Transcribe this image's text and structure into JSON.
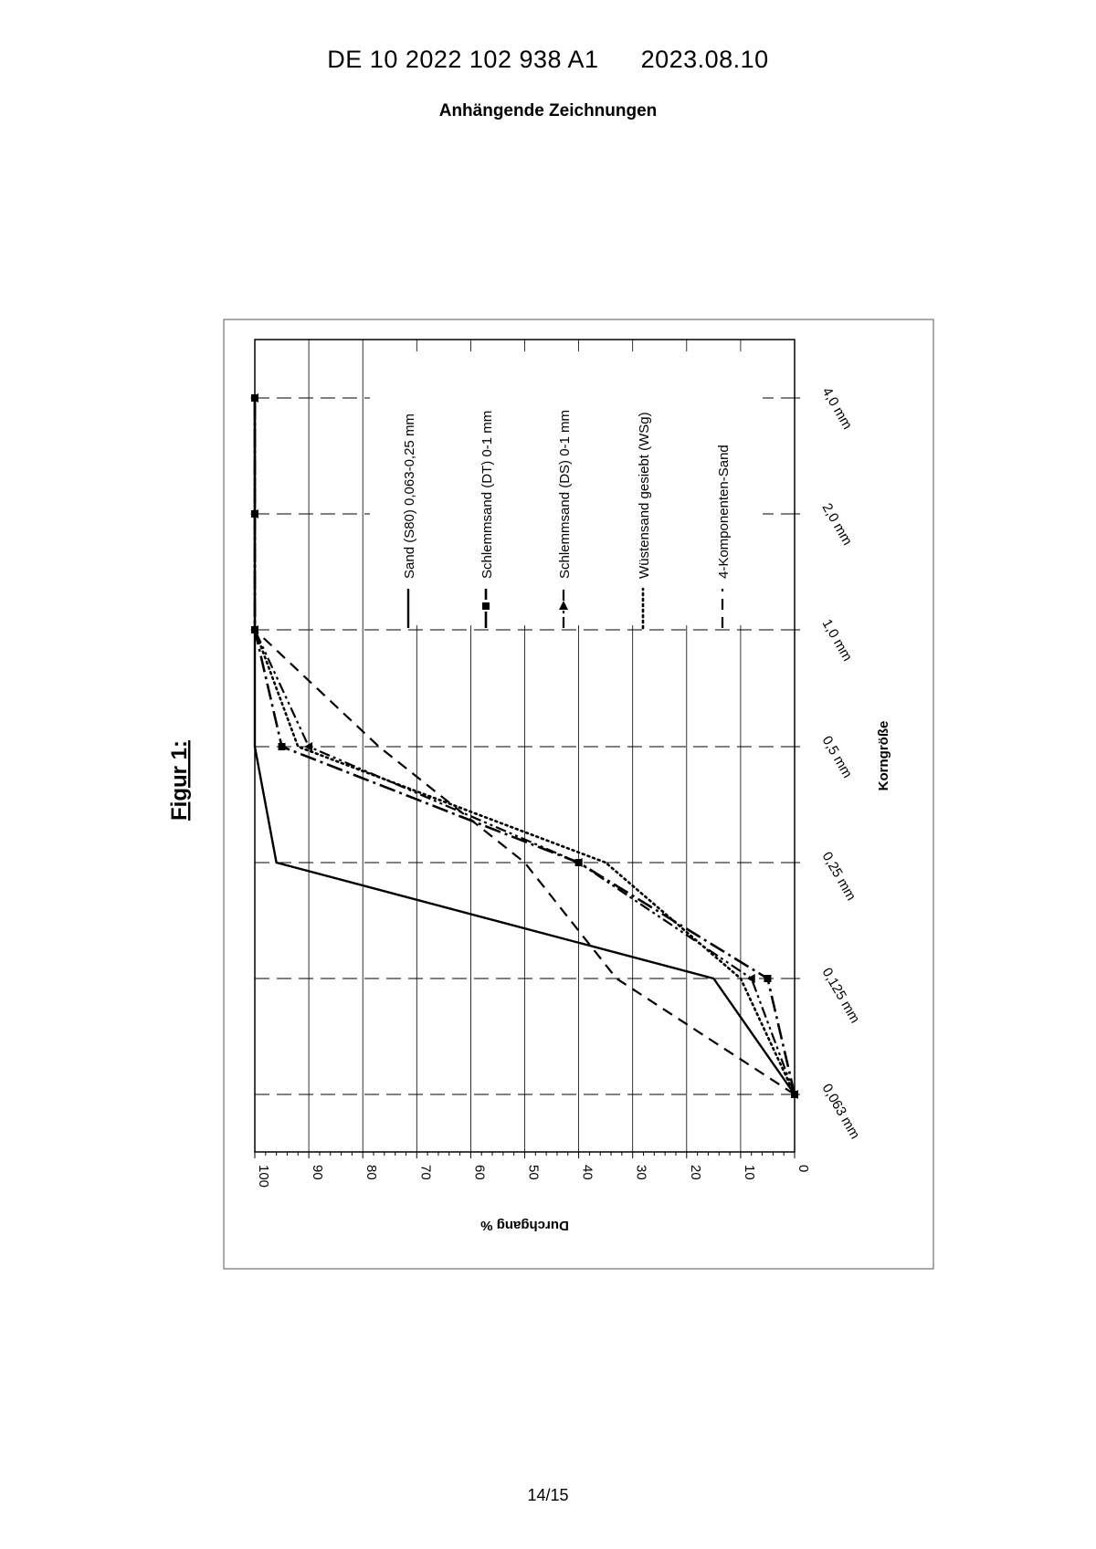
{
  "document": {
    "pub_number": "DE 10 2022 102 938 A1",
    "pub_date": "2023.08.10",
    "section_title": "Anhängende Zeichnungen",
    "figure_label": "Figur 1:",
    "page_number": "14/15"
  },
  "chart_data": {
    "type": "line",
    "orientation": "rotated 90° clockwise",
    "xlabel": "Korngröße",
    "ylabel": "Durchgang %",
    "categories": [
      "0,063 mm",
      "0,125 mm",
      "0,25 mm",
      "0,5 mm",
      "1,0 mm",
      "2,0 mm",
      "4,0 mm"
    ],
    "ylim": [
      0,
      100
    ],
    "yticks": [
      "0",
      "10",
      "20",
      "30",
      "40",
      "50",
      "60",
      "70",
      "80",
      "90",
      "100"
    ],
    "grid": true,
    "legend_position": "inside plot, upper area",
    "series": [
      {
        "name": "Sand (S80) 0,063-0,25 mm",
        "style": "solid",
        "marker": "none",
        "values": [
          0,
          15,
          96,
          100,
          100,
          100,
          100
        ]
      },
      {
        "name": "Schlemmsand (DT) 0-1 mm",
        "style": "long-dash-dot",
        "marker": "square",
        "values": [
          0,
          5,
          40,
          95,
          100,
          100,
          100
        ]
      },
      {
        "name": "Schlemmsand (DS) 0-1 mm",
        "style": "dash-dot-dot",
        "marker": "triangle",
        "values": [
          0,
          8,
          40,
          90,
          100,
          100,
          100
        ]
      },
      {
        "name": "Wüstensand gesiebt (WSg)",
        "style": "dotted",
        "marker": "none",
        "values": [
          0,
          10,
          35,
          92,
          100,
          100,
          100
        ]
      },
      {
        "name": "4-Komponenten-Sand",
        "style": "dashed",
        "marker": "none",
        "values": [
          0,
          33,
          50,
          77,
          100,
          100,
          100
        ]
      }
    ]
  }
}
